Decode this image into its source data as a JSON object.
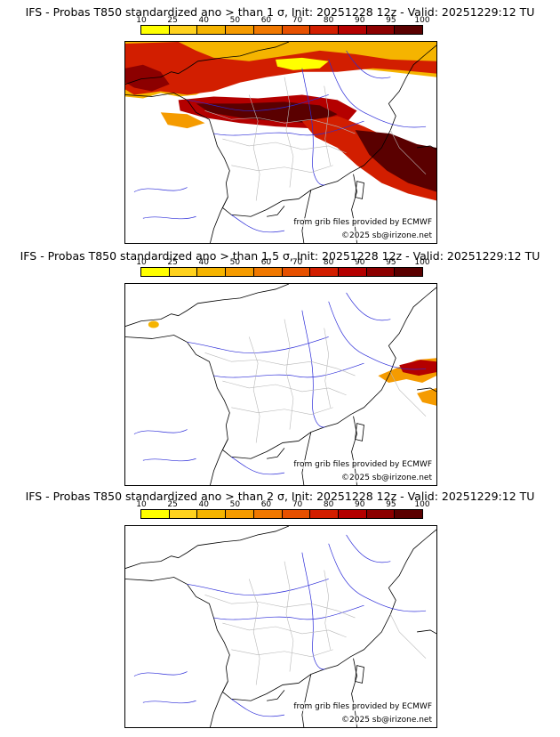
{
  "legend": {
    "ticks": [
      "10",
      "25",
      "40",
      "50",
      "60",
      "70",
      "80",
      "90",
      "95",
      "100"
    ],
    "colors": [
      "#ffff00",
      "#ffd21e",
      "#f5b400",
      "#f59b00",
      "#f07800",
      "#e65000",
      "#d21e00",
      "#b40000",
      "#8c0000",
      "#5a0000"
    ]
  },
  "panels": [
    {
      "title": "IFS - Probas T850  standardized ano > than 1 σ, Init: 20251228 12z - Valid: 20251229:12 TU",
      "source_credit": "from grib files provided by ECMWF",
      "copyright": "©2025 sb@irizone.net"
    },
    {
      "title": "IFS - Probas T850  standardized ano > than 1.5 σ, Init: 20251228 12z - Valid: 20251229:12 TU",
      "source_credit": "from grib files provided by ECMWF",
      "copyright": "©2025 sb@irizone.net"
    },
    {
      "title": "IFS - Probas T850  standardized ano > than 2 σ, Init: 20251228 12z - Valid: 20251229:12 TU",
      "source_credit": "from grib files provided by ECMWF",
      "copyright": "©2025 sb@irizone.net"
    }
  ]
}
